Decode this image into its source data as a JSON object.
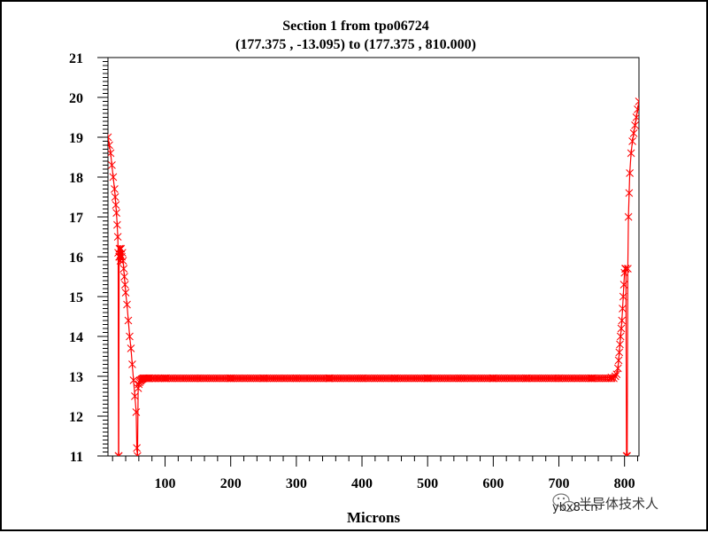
{
  "chart_data": {
    "type": "line",
    "title": "Section 1 from tpo06724",
    "subtitle": "(177.375 , -13.095) to (177.375 , 810.000)",
    "xlabel": "Microns",
    "ylabel": "",
    "xlim": [
      13,
      822
    ],
    "ylim": [
      11,
      21
    ],
    "x_ticks": [
      100,
      200,
      300,
      400,
      500,
      600,
      700,
      800
    ],
    "x_tick_labels": [
      "100",
      "200",
      "300",
      "400",
      "500",
      "600",
      "700",
      "800"
    ],
    "y_ticks": [
      11,
      12,
      13,
      14,
      15,
      16,
      17,
      18,
      19,
      20,
      21
    ],
    "y_tick_labels": [
      "11",
      "12",
      "13",
      "14",
      "15",
      "16",
      "17",
      "18",
      "19",
      "20",
      "21"
    ],
    "grid": false,
    "marker": "asterisk",
    "color": "#ff0000",
    "series": [
      {
        "x": [
          13,
          15,
          17,
          19,
          21,
          23,
          24,
          25,
          26,
          27,
          28,
          28.5,
          29,
          29.5,
          30,
          30.5,
          31,
          31.5,
          32,
          33,
          34,
          35,
          36,
          37,
          38,
          39,
          40,
          42,
          44,
          46,
          48,
          50,
          52,
          54,
          56,
          57,
          58,
          59,
          60,
          61,
          62,
          63,
          64,
          65,
          66,
          67,
          68,
          70,
          72,
          75,
          80,
          90,
          100,
          150,
          200,
          250,
          300,
          350,
          400,
          450,
          500,
          550,
          600,
          650,
          700,
          750,
          780,
          786,
          788,
          790,
          791,
          792,
          793,
          794,
          795,
          796,
          797,
          798,
          799,
          800,
          801,
          802,
          803,
          804,
          805,
          806,
          807,
          808,
          810,
          812,
          814,
          816,
          818,
          820,
          822
        ],
        "y": [
          19.0,
          18.8,
          18.6,
          18.3,
          18.0,
          17.7,
          17.5,
          17.3,
          17.1,
          16.8,
          16.5,
          16.1,
          11.0,
          11.0,
          16.0,
          16.2,
          16.0,
          16.2,
          15.9,
          16.2,
          16.0,
          16.1,
          15.9,
          15.7,
          15.5,
          15.3,
          15.1,
          14.8,
          14.4,
          14.0,
          13.7,
          13.3,
          12.9,
          12.5,
          12.1,
          11.2,
          11.0,
          12.7,
          12.8,
          12.85,
          12.88,
          12.9,
          12.92,
          12.93,
          12.94,
          12.95,
          12.95,
          12.95,
          12.95,
          12.95,
          12.95,
          12.95,
          12.95,
          12.95,
          12.95,
          12.95,
          12.95,
          12.95,
          12.95,
          12.95,
          12.95,
          12.95,
          12.95,
          12.95,
          12.95,
          12.95,
          12.97,
          13.0,
          13.05,
          13.2,
          13.4,
          13.6,
          13.8,
          14.0,
          14.2,
          14.4,
          14.7,
          15.0,
          15.3,
          15.6,
          15.7,
          15.7,
          11.0,
          11.0,
          15.7,
          17.0,
          17.6,
          18.1,
          18.6,
          18.9,
          19.1,
          19.3,
          19.5,
          19.7,
          19.9
        ]
      }
    ]
  },
  "watermark": {
    "icon": "wechat-icon",
    "text": "半导体技术人",
    "subtext": "ybx8.cn"
  }
}
